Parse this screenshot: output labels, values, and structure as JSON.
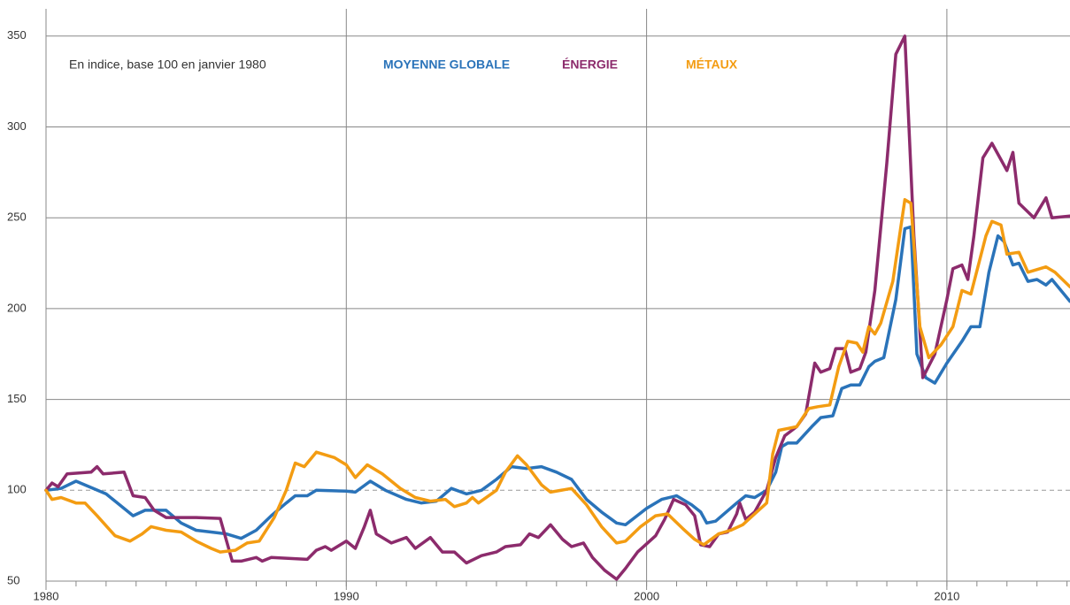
{
  "chart_data": {
    "type": "line",
    "subtitle": "En indice, base 100 en janvier 1980",
    "xlim": [
      1980,
      2014.1
    ],
    "xticks": [
      1980,
      1990,
      2000,
      2010
    ],
    "ylim": [
      50,
      365
    ],
    "yticks": [
      50,
      100,
      150,
      200,
      250,
      300,
      350
    ],
    "reference_line": 100,
    "grid": true,
    "series": [
      {
        "name": "MOYENNE GLOBALE",
        "color": "#2a73b9",
        "x": [
          1980,
          1980.5,
          1981,
          1982,
          1982.9,
          1983.3,
          1984,
          1984.5,
          1985,
          1985.5,
          1986,
          1986.5,
          1987,
          1987.5,
          1988,
          1988.3,
          1988.7,
          1989,
          1990,
          1990.3,
          1990.8,
          1991.3,
          1992,
          1992.5,
          1993,
          1993.5,
          1994,
          1994.5,
          1995,
          1995.5,
          1996,
          1996.5,
          1997,
          1997.5,
          1998,
          1998.5,
          1999,
          1999.3,
          2000,
          2000.5,
          2001,
          2001.5,
          2001.8,
          2002,
          2002.3,
          2003,
          2003.3,
          2003.6,
          2004,
          2004.3,
          2004.5,
          2004.7,
          2005,
          2005.5,
          2005.8,
          2006.2,
          2006.5,
          2006.8,
          2007.1,
          2007.4,
          2007.6,
          2007.9,
          2008.3,
          2008.6,
          2008.8,
          2009,
          2009.3,
          2009.6,
          2010,
          2010.5,
          2010.8,
          2011.1,
          2011.4,
          2011.7,
          2011.9,
          2012.2,
          2012.4,
          2012.7,
          2013,
          2013.3,
          2013.5,
          2014.1
        ],
        "values": [
          100,
          101,
          105,
          98,
          86,
          89,
          89,
          82,
          78,
          77,
          76,
          73.5,
          78,
          86,
          93,
          97,
          97,
          100,
          99.5,
          99,
          105,
          100,
          95,
          93,
          94,
          101,
          98,
          100,
          106,
          113,
          112,
          113,
          110,
          106,
          95,
          88,
          82,
          81,
          90,
          95,
          97,
          92,
          88,
          82,
          83,
          93,
          97,
          96,
          100,
          110,
          124,
          126,
          126,
          135,
          140,
          141,
          156,
          158,
          158,
          168,
          171,
          173,
          205,
          244,
          245,
          175,
          162,
          159,
          170,
          182,
          190,
          190,
          220,
          240,
          237,
          224,
          225,
          215,
          216,
          213,
          216,
          204
        ]
      },
      {
        "name": "ÉNERGIE",
        "color": "#8c2b6c",
        "x": [
          1980,
          1980.2,
          1980.4,
          1980.7,
          1981.5,
          1981.7,
          1981.9,
          1982.6,
          1982.9,
          1983.3,
          1983.6,
          1984,
          1985,
          1985.8,
          1986.2,
          1986.5,
          1987,
          1987.2,
          1987.5,
          1988.7,
          1989,
          1989.3,
          1989.5,
          1990,
          1990.3,
          1990.6,
          1990.8,
          1991,
          1991.5,
          1992,
          1992.3,
          1992.8,
          1993.2,
          1993.6,
          1994,
          1994.5,
          1995,
          1995.3,
          1995.8,
          1996.1,
          1996.4,
          1996.8,
          1997.2,
          1997.5,
          1997.9,
          1998.2,
          1998.6,
          1999,
          1999.3,
          1999.7,
          2000.3,
          2000.6,
          2000.9,
          2001.3,
          2001.6,
          2001.8,
          2002.1,
          2002.4,
          2002.7,
          2003,
          2003.1,
          2003.3,
          2003.6,
          2004,
          2004.3,
          2004.6,
          2005,
          2005.3,
          2005.6,
          2005.8,
          2006.1,
          2006.3,
          2006.6,
          2006.8,
          2007.1,
          2007.3,
          2007.6,
          2008,
          2008.3,
          2008.6,
          2008.9,
          2009.2,
          2009.6,
          2010,
          2010.2,
          2010.5,
          2010.7,
          2010.9,
          2011.2,
          2011.5,
          2011.8,
          2012,
          2012.2,
          2012.4,
          2012.9,
          2013.3,
          2013.5,
          2014.1
        ],
        "values": [
          100,
          104,
          102,
          109,
          110,
          113,
          109,
          110,
          97,
          96,
          89,
          85,
          85,
          84.5,
          61,
          61,
          63,
          61,
          63,
          62,
          67,
          69,
          67,
          72,
          68,
          80,
          89,
          76,
          71,
          74,
          68,
          74,
          66,
          66,
          60,
          64,
          66,
          69,
          70,
          76,
          74,
          81,
          73,
          69,
          71,
          63,
          56,
          51,
          57,
          66,
          75,
          84,
          95,
          92,
          86,
          70,
          69,
          76,
          77,
          87,
          93,
          84,
          88,
          100,
          118,
          130,
          135,
          142,
          170,
          165,
          167,
          178,
          178,
          165,
          167,
          176,
          210,
          280,
          340,
          350,
          240,
          162,
          175,
          205,
          222,
          224,
          216,
          240,
          283,
          291,
          282,
          276,
          286,
          258,
          250,
          261,
          250,
          251
        ]
      },
      {
        "name": "MÉTAUX",
        "color": "#f39c12",
        "x": [
          1980,
          1980.2,
          1980.5,
          1981,
          1981.3,
          1981.7,
          1982.3,
          1982.8,
          1983.2,
          1983.5,
          1984,
          1984.5,
          1985,
          1985.5,
          1985.8,
          1986.3,
          1986.7,
          1987.1,
          1987.6,
          1988,
          1988.3,
          1988.6,
          1989,
          1989.6,
          1990,
          1990.3,
          1990.7,
          1991.2,
          1991.8,
          1992.3,
          1992.8,
          1993.3,
          1993.6,
          1994,
          1994.2,
          1994.4,
          1995,
          1995.3,
          1995.7,
          1996,
          1996.5,
          1996.8,
          1997.5,
          1998,
          1998.5,
          1999,
          1999.3,
          1999.8,
          2000.3,
          2000.7,
          2001.2,
          2001.6,
          2001.9,
          2002.4,
          2002.8,
          2003.2,
          2003.6,
          2004,
          2004.2,
          2004.4,
          2004.7,
          2005,
          2005.4,
          2005.7,
          2006.1,
          2006.4,
          2006.7,
          2007,
          2007.2,
          2007.4,
          2007.6,
          2007.8,
          2008.2,
          2008.6,
          2008.8,
          2009.1,
          2009.4,
          2009.8,
          2010.2,
          2010.5,
          2010.8,
          2011.3,
          2011.5,
          2011.8,
          2012,
          2012.4,
          2012.7,
          2013.3,
          2013.6,
          2014.1
        ],
        "values": [
          100,
          95,
          96,
          93,
          93,
          86,
          75,
          72,
          76,
          80,
          78,
          77,
          72,
          68,
          66,
          67,
          71,
          72,
          85,
          100,
          115,
          113,
          121,
          118,
          114,
          107,
          114,
          109,
          101,
          96,
          94,
          95,
          91,
          93,
          96,
          93,
          100,
          110,
          119,
          114,
          103,
          99,
          101,
          92,
          80,
          71,
          72,
          80,
          86,
          87,
          79,
          73,
          70,
          76,
          78,
          81,
          87,
          93,
          120,
          133,
          134,
          135,
          145,
          146,
          147,
          168,
          182,
          181,
          176,
          190,
          186,
          192,
          215,
          260,
          258,
          190,
          173,
          180,
          190,
          210,
          208,
          240,
          248,
          246,
          230,
          231,
          220,
          223,
          220,
          212
        ]
      }
    ]
  }
}
